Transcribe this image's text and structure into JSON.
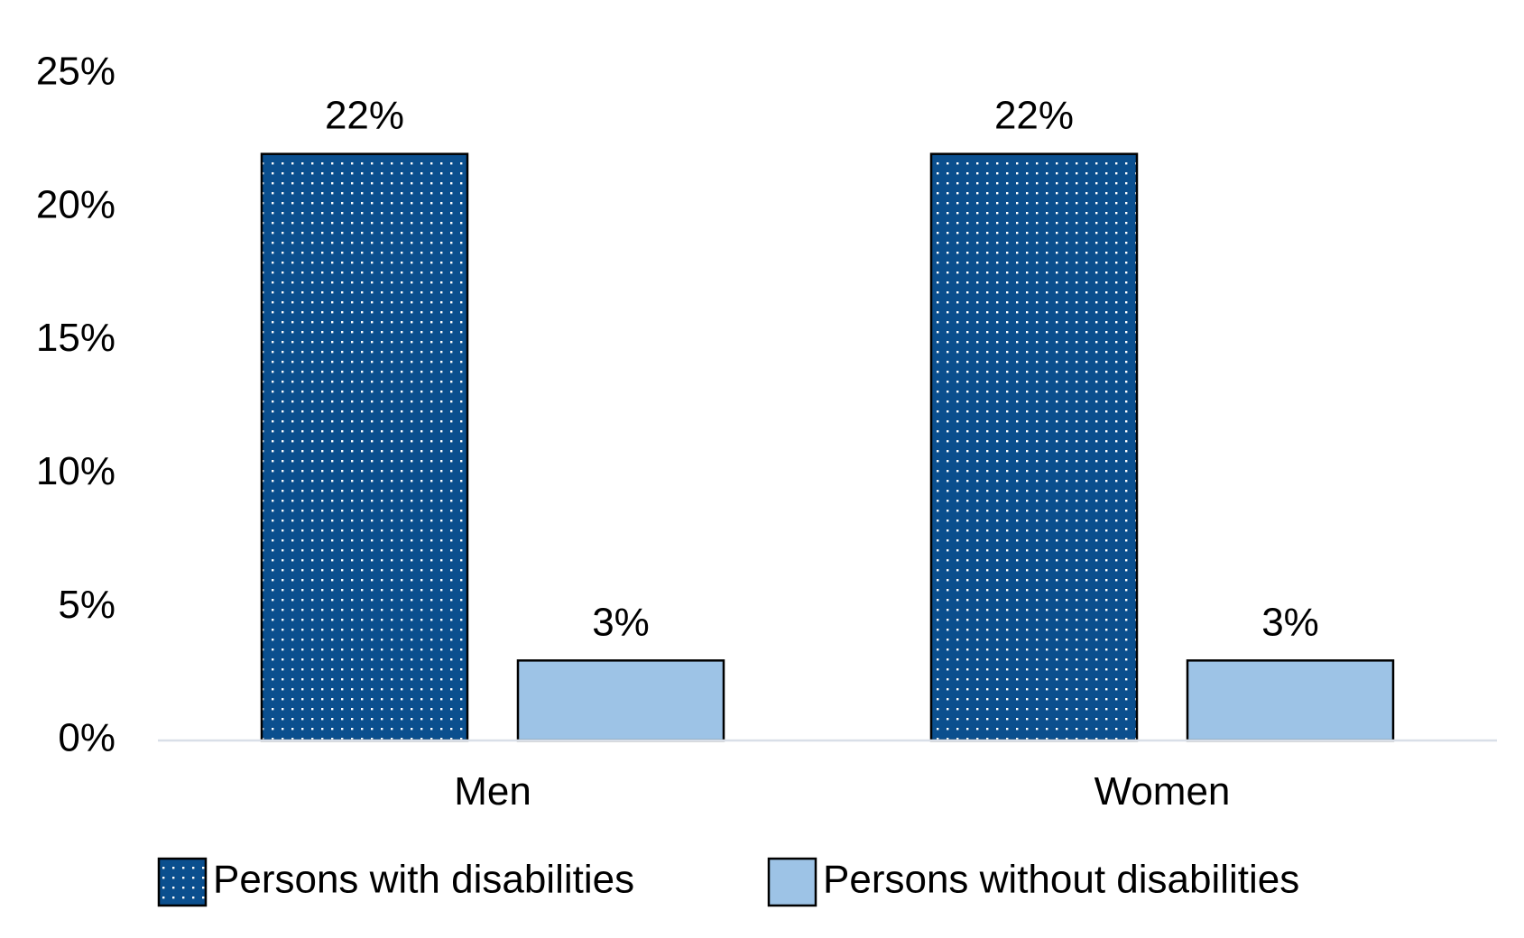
{
  "chart_data": {
    "type": "bar",
    "title": "",
    "xlabel": "",
    "ylabel": "",
    "categories": [
      "Men",
      "Women"
    ],
    "series": [
      {
        "name": "Persons with disabilities",
        "values": [
          22,
          22
        ],
        "labels": [
          "22%",
          "22%"
        ],
        "color": "#0b4f8e",
        "pattern": "dotted"
      },
      {
        "name": "Persons without disabilities",
        "values": [
          3,
          3
        ],
        "labels": [
          "3%",
          "3%"
        ],
        "color": "#9dc3e6",
        "pattern": "solid"
      }
    ],
    "ylim": [
      0,
      25
    ],
    "yticks": [
      0,
      5,
      10,
      15,
      20,
      25
    ],
    "ytick_labels": [
      "0%",
      "5%",
      "10%",
      "15%",
      "20%",
      "25%"
    ],
    "grid": false,
    "legend_position": "bottom",
    "axis_color": "#d9dfe8"
  }
}
